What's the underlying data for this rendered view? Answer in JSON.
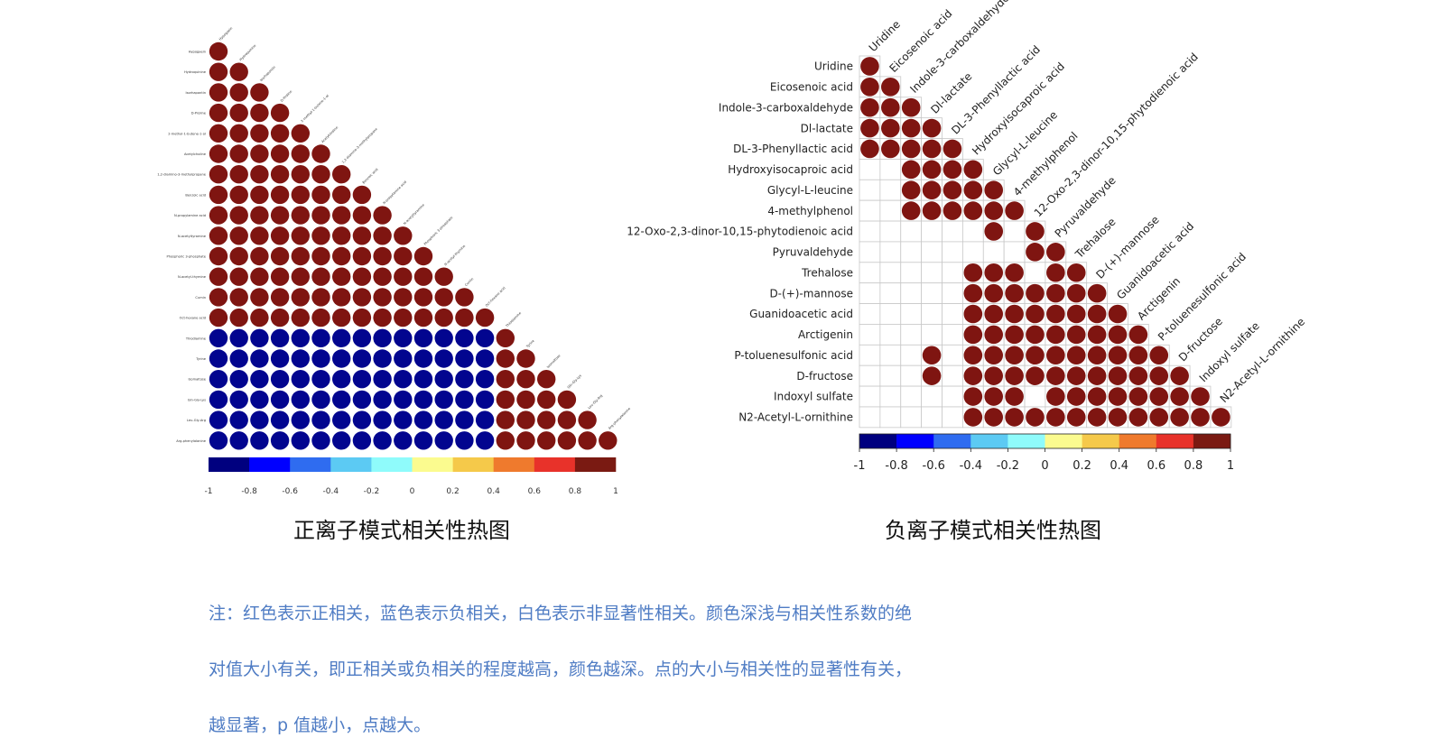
{
  "chart_data": [
    {
      "type": "heatmap",
      "subtype": "lower-triangle correlation matrix",
      "title": "正离子模式相关性热图",
      "variables": [
        "Hypogaein",
        "Hydroquinine",
        "Isorhapontin",
        "D-Proline",
        "2-methyl-1-butene-1-ol",
        "Acetylcholine",
        "1,2-diamino-3-methylpropane",
        "Benzoic acid",
        "N-propylamine acid",
        "N-acetyltyramine",
        "Phosphoric 3-phosphate",
        "N-acetyl-thymine",
        "Cumin",
        "Oct-hexane acid",
        "Thiodiamine",
        "Tyrine",
        "Isomaltose",
        "Gln-Gly-Lys",
        "Leu-Gly-Arg",
        "Arg-phenylalanine"
      ],
      "rows": [
        [
          1
        ],
        [
          1,
          1
        ],
        [
          1,
          1,
          1
        ],
        [
          1,
          1,
          1,
          1
        ],
        [
          1,
          1,
          1,
          1,
          1
        ],
        [
          1,
          1,
          1,
          1,
          1,
          1
        ],
        [
          1,
          1,
          1,
          1,
          1,
          1,
          1
        ],
        [
          1,
          1,
          1,
          1,
          1,
          1,
          1,
          1
        ],
        [
          1,
          1,
          1,
          1,
          1,
          1,
          1,
          1,
          1
        ],
        [
          1,
          1,
          1,
          1,
          1,
          1,
          1,
          1,
          1,
          1
        ],
        [
          1,
          1,
          1,
          1,
          1,
          1,
          1,
          1,
          1,
          1,
          1
        ],
        [
          1,
          1,
          1,
          1,
          1,
          1,
          1,
          1,
          1,
          1,
          1,
          1
        ],
        [
          1,
          1,
          1,
          1,
          1,
          1,
          1,
          1,
          1,
          1,
          1,
          1,
          1
        ],
        [
          1,
          1,
          1,
          1,
          1,
          1,
          1,
          1,
          1,
          1,
          1,
          1,
          1,
          1
        ],
        [
          -1,
          -1,
          -1,
          -1,
          -1,
          -1,
          -1,
          -1,
          -1,
          -1,
          -1,
          -1,
          -1,
          -1,
          1
        ],
        [
          -1,
          -1,
          -1,
          -1,
          -1,
          -1,
          -1,
          -1,
          -1,
          -1,
          -1,
          -1,
          -1,
          -1,
          1,
          1
        ],
        [
          -1,
          -1,
          -1,
          -1,
          -1,
          -1,
          -1,
          -1,
          -1,
          -1,
          -1,
          -1,
          -1,
          -1,
          1,
          1,
          1
        ],
        [
          -1,
          -1,
          -1,
          -1,
          -1,
          -1,
          -1,
          -1,
          -1,
          -1,
          -1,
          -1,
          -1,
          -1,
          1,
          1,
          1,
          1
        ],
        [
          -1,
          -1,
          -1,
          -1,
          -1,
          -1,
          -1,
          -1,
          -1,
          -1,
          -1,
          -1,
          -1,
          -1,
          1,
          1,
          1,
          1,
          1
        ],
        [
          -1,
          -1,
          -1,
          -1,
          -1,
          -1,
          -1,
          -1,
          -1,
          -1,
          -1,
          -1,
          -1,
          -1,
          1,
          1,
          1,
          1,
          1,
          1
        ]
      ],
      "grid": false,
      "colorbar": {
        "position": "bottom",
        "ticks": [
          "-1",
          "-0.8",
          "-0.6",
          "-0.4",
          "-0.2",
          "0",
          "0.2",
          "0.4",
          "0.6",
          "0.8",
          "1"
        ]
      }
    },
    {
      "type": "heatmap",
      "subtype": "lower-triangle correlation matrix",
      "title": "负离子模式相关性热图",
      "variables": [
        "Uridine",
        "Eicosenoic acid",
        "Indole-3-carboxaldehyde",
        "Dl-lactate",
        "DL-3-Phenyllactic acid",
        "Hydroxyisocaproic acid",
        "Glycyl-L-leucine",
        "4-methylphenol",
        "12-Oxo-2,3-dinor-10,15-phytodienoic acid",
        "Pyruvaldehyde",
        "Trehalose",
        "D-(+)-mannose",
        "Guanidoacetic acid",
        "Arctigenin",
        "P-toluenesulfonic acid",
        "D-fructose",
        "Indoxyl sulfate",
        "N2-Acetyl-L-ornithine"
      ],
      "rows": [
        [
          1
        ],
        [
          1,
          1
        ],
        [
          1,
          1,
          1
        ],
        [
          1,
          1,
          1,
          1
        ],
        [
          1,
          1,
          1,
          1,
          1
        ],
        [
          0,
          0,
          1,
          1,
          1,
          1
        ],
        [
          0,
          0,
          1,
          1,
          1,
          1,
          1
        ],
        [
          0,
          0,
          1,
          1,
          1,
          1,
          1,
          1
        ],
        [
          0,
          0,
          0,
          0,
          0,
          0,
          1,
          0,
          1
        ],
        [
          0,
          0,
          0,
          0,
          0,
          0,
          0,
          0,
          1,
          1
        ],
        [
          0,
          0,
          0,
          0,
          0,
          1,
          1,
          1,
          0,
          1,
          1
        ],
        [
          0,
          0,
          0,
          0,
          0,
          1,
          1,
          1,
          1,
          1,
          1,
          1
        ],
        [
          0,
          0,
          0,
          0,
          0,
          1,
          1,
          1,
          1,
          1,
          1,
          1,
          1
        ],
        [
          0,
          0,
          0,
          0,
          0,
          1,
          1,
          1,
          1,
          1,
          1,
          1,
          1,
          1
        ],
        [
          0,
          0,
          0,
          1,
          0,
          1,
          1,
          1,
          1,
          1,
          1,
          1,
          1,
          1,
          1
        ],
        [
          0,
          0,
          0,
          1,
          0,
          1,
          1,
          1,
          1,
          1,
          1,
          1,
          1,
          1,
          1,
          1
        ],
        [
          0,
          0,
          0,
          0,
          0,
          1,
          1,
          1,
          0,
          1,
          1,
          1,
          1,
          1,
          1,
          1,
          1
        ],
        [
          0,
          0,
          0,
          0,
          0,
          1,
          1,
          1,
          1,
          1,
          1,
          1,
          1,
          1,
          1,
          1,
          1,
          1
        ]
      ],
      "grid": true,
      "colorbar": {
        "position": "bottom",
        "ticks": [
          "-1",
          "-0.8",
          "-0.6",
          "-0.4",
          "-0.2",
          "0",
          "0.2",
          "0.4",
          "0.6",
          "0.8",
          "1"
        ]
      }
    }
  ],
  "colors": {
    "positive": "#7f1511",
    "negative": "#02058f",
    "scale": [
      "#00007f",
      "#0000ff",
      "#2f6cf0",
      "#5ccaf3",
      "#8ffbfb",
      "#fbfb8f",
      "#f5c94a",
      "#ef7a2d",
      "#e8322a",
      "#7a1a12"
    ]
  },
  "note": {
    "line1": "注：红色表示正相关，蓝色表示负相关，白色表示非显著性相关。颜色深浅与相关性系数的绝",
    "line2": "对值大小有关，即正相关或负相关的程度越高，颜色越深。点的大小与相关性的显著性有关，",
    "line3": "越显著，p 值越小，点越大。"
  }
}
